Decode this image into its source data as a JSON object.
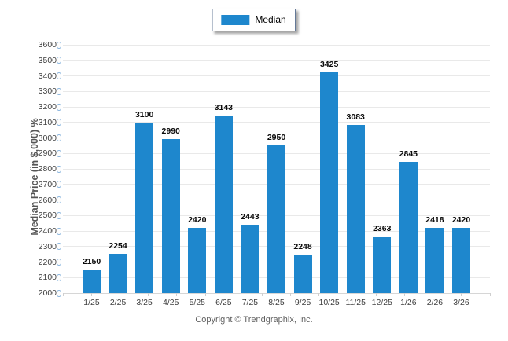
{
  "legend": {
    "label": "Median",
    "swatch_color": "#1e87cd"
  },
  "footer": {
    "copyright": "Copyright © Trendgraphix, Inc."
  },
  "chart_data": {
    "type": "bar",
    "title": "",
    "xlabel": "",
    "ylabel": "Median Price (in $,000) %",
    "categories": [
      "1/25",
      "2/25",
      "3/25",
      "4/25",
      "5/25",
      "6/25",
      "7/25",
      "8/25",
      "9/25",
      "10/25",
      "11/25",
      "12/25",
      "1/26",
      "2/26",
      "3/26"
    ],
    "series": [
      {
        "name": "Median",
        "color": "#1e87cd",
        "values": [
          2150,
          2254,
          3100,
          2990,
          2420,
          3143,
          2443,
          2950,
          2248,
          3425,
          3083,
          2363,
          2845,
          2418,
          2420
        ]
      }
    ],
    "data_labels_shown": true,
    "ylim": [
      2000,
      3600
    ],
    "ytick_interval": 100,
    "grid": true,
    "gridline_color": "#e9e9e9",
    "legend_position": "top-center"
  }
}
